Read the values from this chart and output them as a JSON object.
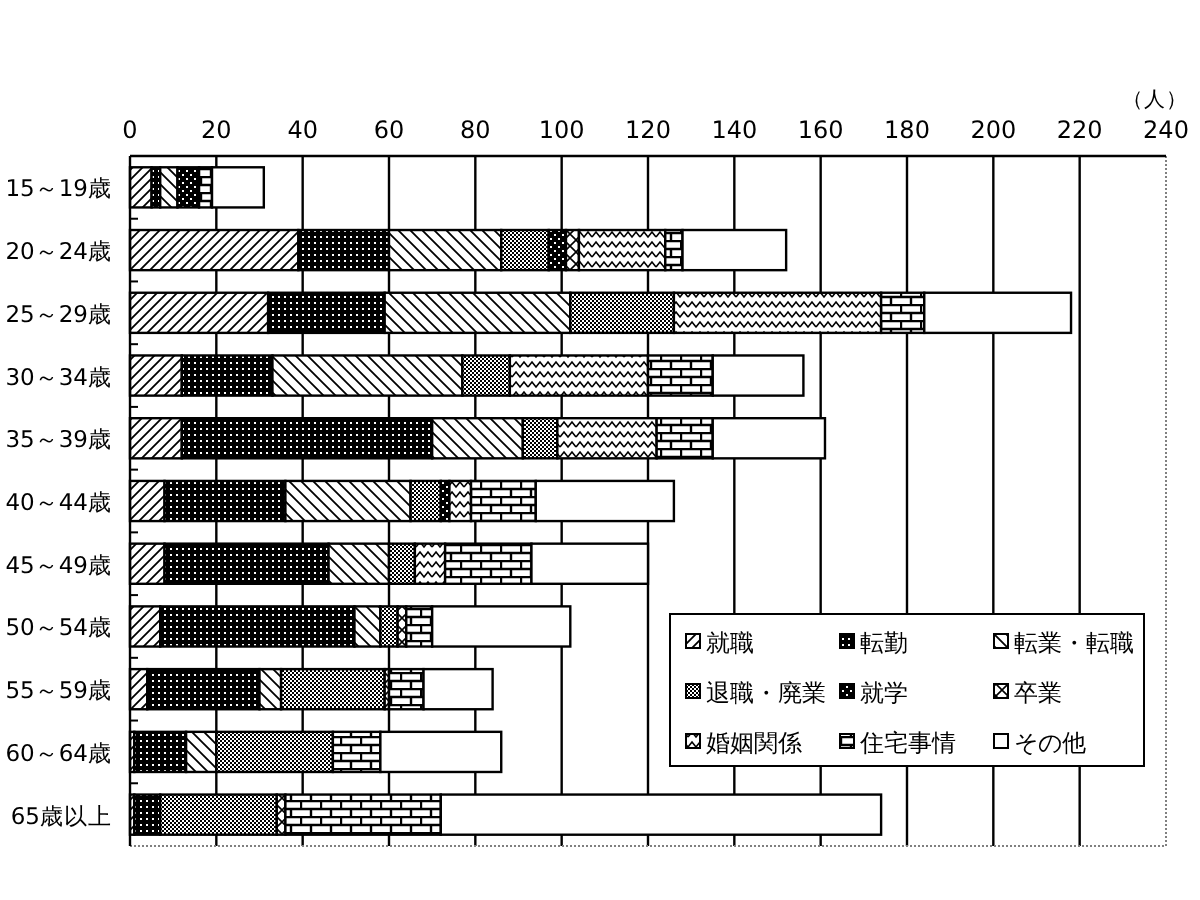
{
  "chart_data": {
    "type": "bar",
    "orientation": "horizontal",
    "stacked": true,
    "xlabel": "（人）",
    "categories": [
      "15～19歳",
      "20～24歳",
      "25～29歳",
      "30～34歳",
      "35～39歳",
      "40～44歳",
      "45～49歳",
      "50～54歳",
      "55～59歳",
      "60～64歳",
      "65歳以上"
    ],
    "series": [
      {
        "name": "就職",
        "color": "#000000",
        "values": [
          5,
          39,
          32,
          12,
          12,
          8,
          8,
          7,
          4,
          1,
          1
        ]
      },
      {
        "name": "転勤",
        "color": "#000000",
        "values": [
          2,
          21,
          27,
          21,
          58,
          28,
          38,
          45,
          26,
          12,
          6
        ]
      },
      {
        "name": "転業・転職",
        "color": "#000000",
        "values": [
          4,
          26,
          43,
          44,
          21,
          29,
          14,
          6,
          5,
          7,
          0
        ]
      },
      {
        "name": "退職・廃業",
        "color": "#000000",
        "values": [
          0,
          11,
          24,
          11,
          8,
          7,
          6,
          4,
          24,
          27,
          27
        ]
      },
      {
        "name": "就学",
        "color": "#000000",
        "values": [
          5,
          4,
          0,
          0,
          0,
          2,
          0,
          0,
          0,
          0,
          0
        ]
      },
      {
        "name": "卒業",
        "color": "#000000",
        "values": [
          0,
          3,
          0,
          0,
          0,
          0,
          0,
          2,
          1,
          0,
          2
        ]
      },
      {
        "name": "婚姻関係",
        "color": "#000000",
        "values": [
          0,
          20,
          48,
          32,
          23,
          5,
          7,
          0,
          0,
          0,
          0
        ]
      },
      {
        "name": "住宅事情",
        "color": "#000000",
        "values": [
          3,
          4,
          10,
          15,
          13,
          15,
          20,
          6,
          8,
          11,
          36
        ]
      },
      {
        "name": "その他",
        "color": "#ffffff",
        "values": [
          12,
          24,
          34,
          21,
          26,
          32,
          27,
          32,
          16,
          28,
          102
        ]
      }
    ],
    "xlim": [
      0,
      240
    ],
    "xticks": [
      0,
      20,
      40,
      60,
      80,
      100,
      120,
      140,
      160,
      180,
      200,
      220,
      240
    ],
    "grid": "x",
    "legend": "bottom right"
  }
}
